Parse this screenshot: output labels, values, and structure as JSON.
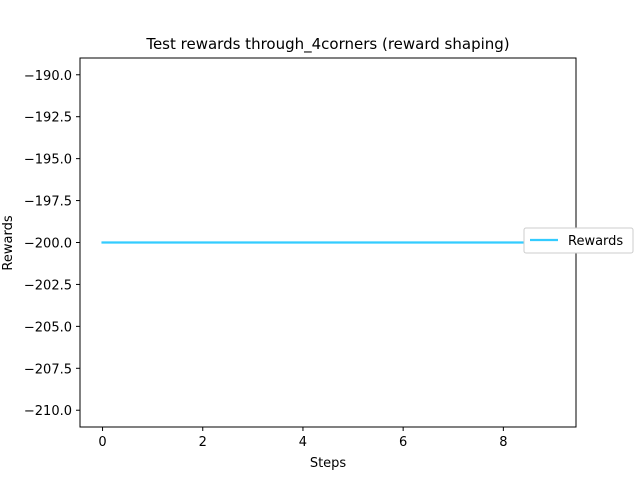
{
  "chart_data": {
    "type": "line",
    "title": "Test rewards through_4corners (reward shaping)",
    "xlabel": "Steps",
    "ylabel": "Rewards",
    "xlim": [
      -0.45,
      9.45
    ],
    "ylim": [
      -211.0,
      -189.0
    ],
    "xticks": [
      0,
      2,
      4,
      6,
      8
    ],
    "xtick_labels": [
      "0",
      "2",
      "4",
      "6",
      "8"
    ],
    "yticks": [
      -190.0,
      -192.5,
      -195.0,
      -197.5,
      -200.0,
      -202.5,
      -205.0,
      -207.5,
      -210.0
    ],
    "ytick_labels": [
      "−190.0",
      "−192.5",
      "−195.0",
      "−197.5",
      "−200.0",
      "−202.5",
      "−205.0",
      "−207.5",
      "−210.0"
    ],
    "grid": false,
    "legend_position": "center-right",
    "series": [
      {
        "name": "Rewards",
        "color": "#33ccff",
        "x": [
          0,
          1,
          2,
          3,
          4,
          5,
          6,
          7,
          8,
          9
        ],
        "y": [
          -200,
          -200,
          -200,
          -200,
          -200,
          -200,
          -200,
          -200,
          -200,
          -200
        ]
      }
    ]
  }
}
